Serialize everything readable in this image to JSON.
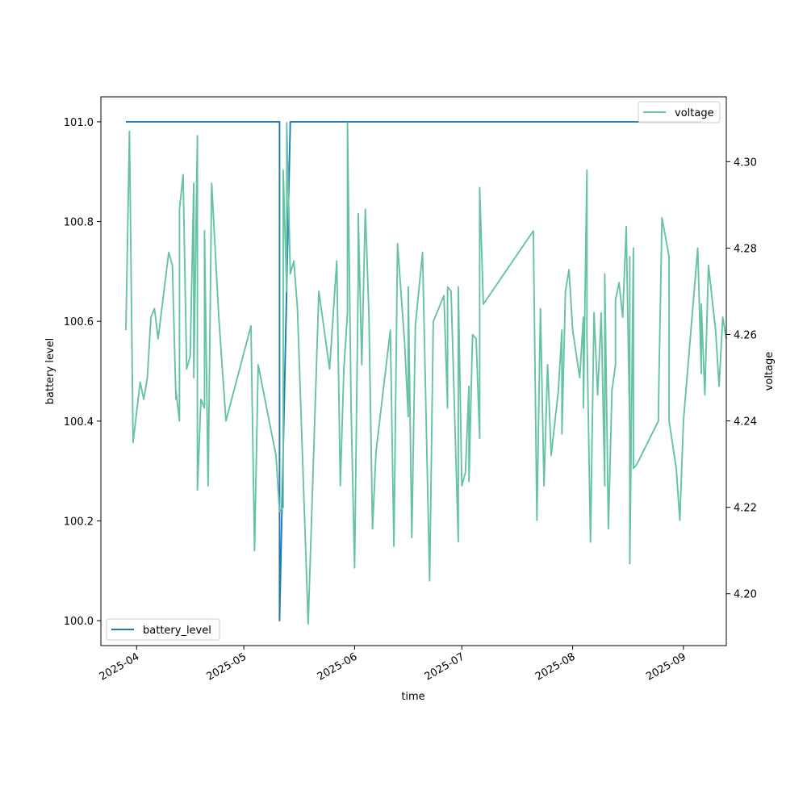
{
  "chart_data": {
    "type": "line",
    "xlabel": "time",
    "ylabel_left": "battery level",
    "ylabel_right": "voltage",
    "x_ticks": [
      "2025-04",
      "2025-05",
      "2025-06",
      "2025-07",
      "2025-08",
      "2025-09"
    ],
    "y_left_ticks": [
      "100.0",
      "100.2",
      "100.4",
      "100.6",
      "100.8",
      "101.0"
    ],
    "y_right_ticks": [
      "4.20",
      "4.22",
      "4.24",
      "4.26",
      "4.28",
      "4.30"
    ],
    "y_left_range": [
      99.95,
      101.05
    ],
    "y_right_range": [
      4.188,
      4.315
    ],
    "x_range": [
      "2025-03-22",
      "2025-09-13"
    ],
    "series": [
      {
        "name": "battery_level",
        "axis": "left",
        "color": "#1f77b4",
        "legend_position": "lower-left",
        "points": [
          [
            "2025-03-29",
            101.0
          ],
          [
            "2025-05-11",
            101.0
          ],
          [
            "2025-05-11",
            100.0
          ],
          [
            "2025-05-14",
            101.0
          ],
          [
            "2025-09-06",
            101.0
          ]
        ]
      },
      {
        "name": "voltage",
        "axis": "right",
        "color": "#66c2a5",
        "legend_position": "upper-right",
        "points": [
          [
            "2025-03-29",
            4.261
          ],
          [
            "2025-03-30",
            4.307
          ],
          [
            "2025-03-31",
            4.235
          ],
          [
            "2025-04-02",
            4.249
          ],
          [
            "2025-04-03",
            4.245
          ],
          [
            "2025-04-04",
            4.25
          ],
          [
            "2025-04-05",
            4.264
          ],
          [
            "2025-04-06",
            4.266
          ],
          [
            "2025-04-07",
            4.259
          ],
          [
            "2025-04-10",
            4.279
          ],
          [
            "2025-04-11",
            4.276
          ],
          [
            "2025-04-12",
            4.245
          ],
          [
            "2025-04-12",
            4.247
          ],
          [
            "2025-04-13",
            4.24
          ],
          [
            "2025-04-13",
            4.289
          ],
          [
            "2025-04-14",
            4.297
          ],
          [
            "2025-04-15",
            4.252
          ],
          [
            "2025-04-16",
            4.255
          ],
          [
            "2025-04-17",
            4.295
          ],
          [
            "2025-04-17",
            4.25
          ],
          [
            "2025-04-18",
            4.306
          ],
          [
            "2025-04-18",
            4.224
          ],
          [
            "2025-04-19",
            4.245
          ],
          [
            "2025-04-20",
            4.243
          ],
          [
            "2025-04-20",
            4.284
          ],
          [
            "2025-04-21",
            4.225
          ],
          [
            "2025-04-22",
            4.295
          ],
          [
            "2025-04-24",
            4.264
          ],
          [
            "2025-04-26",
            4.24
          ],
          [
            "2025-05-03",
            4.262
          ],
          [
            "2025-05-04",
            4.21
          ],
          [
            "2025-05-05",
            4.253
          ],
          [
            "2025-05-10",
            4.232
          ],
          [
            "2025-05-11",
            4.219
          ],
          [
            "2025-05-12",
            4.22
          ],
          [
            "2025-05-12",
            4.298
          ],
          [
            "2025-05-13",
            4.27
          ],
          [
            "2025-05-13",
            4.309
          ],
          [
            "2025-05-14",
            4.274
          ],
          [
            "2025-05-15",
            4.277
          ],
          [
            "2025-05-16",
            4.266
          ],
          [
            "2025-05-19",
            4.193
          ],
          [
            "2025-05-22",
            4.27
          ],
          [
            "2025-05-25",
            4.252
          ],
          [
            "2025-05-27",
            4.277
          ],
          [
            "2025-05-28",
            4.225
          ],
          [
            "2025-05-29",
            4.252
          ],
          [
            "2025-05-30",
            4.265
          ],
          [
            "2025-05-30",
            4.309
          ],
          [
            "2025-05-31",
            4.244
          ],
          [
            "2025-06-01",
            4.206
          ],
          [
            "2025-06-02",
            4.273
          ],
          [
            "2025-06-02",
            4.288
          ],
          [
            "2025-06-03",
            4.253
          ],
          [
            "2025-06-04",
            4.289
          ],
          [
            "2025-06-05",
            4.265
          ],
          [
            "2025-06-06",
            4.215
          ],
          [
            "2025-06-07",
            4.233
          ],
          [
            "2025-06-11",
            4.261
          ],
          [
            "2025-06-12",
            4.211
          ],
          [
            "2025-06-13",
            4.281
          ],
          [
            "2025-06-15",
            4.258
          ],
          [
            "2025-06-16",
            4.241
          ],
          [
            "2025-06-16",
            4.271
          ],
          [
            "2025-06-17",
            4.213
          ],
          [
            "2025-06-18",
            4.262
          ],
          [
            "2025-06-20",
            4.279
          ],
          [
            "2025-06-22",
            4.203
          ],
          [
            "2025-06-23",
            4.263
          ],
          [
            "2025-06-26",
            4.269
          ],
          [
            "2025-06-27",
            4.243
          ],
          [
            "2025-06-27",
            4.271
          ],
          [
            "2025-06-28",
            4.27
          ],
          [
            "2025-06-30",
            4.212
          ],
          [
            "2025-06-30",
            4.271
          ],
          [
            "2025-07-01",
            4.225
          ],
          [
            "2025-07-02",
            4.228
          ],
          [
            "2025-07-03",
            4.248
          ],
          [
            "2025-07-03",
            4.226
          ],
          [
            "2025-07-04",
            4.26
          ],
          [
            "2025-07-05",
            4.259
          ],
          [
            "2025-07-06",
            4.236
          ],
          [
            "2025-07-06",
            4.294
          ],
          [
            "2025-07-07",
            4.267
          ],
          [
            "2025-07-21",
            4.284
          ],
          [
            "2025-07-22",
            4.217
          ],
          [
            "2025-07-23",
            4.266
          ],
          [
            "2025-07-24",
            4.225
          ],
          [
            "2025-07-25",
            4.253
          ],
          [
            "2025-07-26",
            4.232
          ],
          [
            "2025-07-28",
            4.247
          ],
          [
            "2025-07-29",
            4.261
          ],
          [
            "2025-07-29",
            4.237
          ],
          [
            "2025-07-30",
            4.27
          ],
          [
            "2025-07-31",
            4.275
          ],
          [
            "2025-08-01",
            4.261
          ],
          [
            "2025-08-03",
            4.25
          ],
          [
            "2025-08-04",
            4.264
          ],
          [
            "2025-08-04",
            4.243
          ],
          [
            "2025-08-05",
            4.298
          ],
          [
            "2025-08-05",
            4.26
          ],
          [
            "2025-08-06",
            4.212
          ],
          [
            "2025-08-07",
            4.265
          ],
          [
            "2025-08-08",
            4.246
          ],
          [
            "2025-08-09",
            4.265
          ],
          [
            "2025-08-10",
            4.225
          ],
          [
            "2025-08-10",
            4.274
          ],
          [
            "2025-08-11",
            4.215
          ],
          [
            "2025-08-12",
            4.247
          ],
          [
            "2025-08-13",
            4.253
          ],
          [
            "2025-08-13",
            4.268
          ],
          [
            "2025-08-14",
            4.272
          ],
          [
            "2025-08-15",
            4.264
          ],
          [
            "2025-08-16",
            4.285
          ],
          [
            "2025-08-17",
            4.238
          ],
          [
            "2025-08-17",
            4.278
          ],
          [
            "2025-08-17",
            4.207
          ],
          [
            "2025-08-18",
            4.28
          ],
          [
            "2025-08-18",
            4.229
          ],
          [
            "2025-08-19",
            4.23
          ],
          [
            "2025-08-25",
            4.24
          ],
          [
            "2025-08-25",
            4.243
          ],
          [
            "2025-08-26",
            4.287
          ],
          [
            "2025-08-28",
            4.278
          ],
          [
            "2025-08-28",
            4.24
          ],
          [
            "2025-08-30",
            4.229
          ],
          [
            "2025-08-31",
            4.217
          ],
          [
            "2025-09-01",
            4.24
          ],
          [
            "2025-09-05",
            4.28
          ],
          [
            "2025-09-06",
            4.251
          ],
          [
            "2025-09-06",
            4.267
          ],
          [
            "2025-09-07",
            4.246
          ],
          [
            "2025-09-08",
            4.276
          ],
          [
            "2025-09-10",
            4.261
          ],
          [
            "2025-09-11",
            4.248
          ],
          [
            "2025-09-12",
            4.264
          ],
          [
            "2025-09-13",
            4.259
          ]
        ]
      }
    ],
    "grid": false
  }
}
